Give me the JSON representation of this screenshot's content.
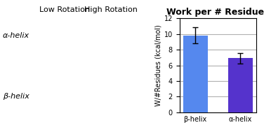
{
  "chart_data": {
    "type": "bar",
    "title": "Work per # Residues",
    "ylabel": "W/#Residues (kcal/mol)",
    "categories": [
      "β-helix",
      "α-helix"
    ],
    "values": [
      9.85,
      6.9
    ],
    "errors": [
      1.05,
      0.65
    ],
    "colors": [
      "#5588EE",
      "#5533CC"
    ],
    "ylim": [
      0,
      12
    ],
    "yticks": [
      0,
      2,
      4,
      6,
      8,
      10,
      12
    ],
    "grid": true,
    "annotations": {
      "columns": [
        "Low Rotation",
        "High Rotation"
      ],
      "rows": [
        "α-helix",
        "β-helix"
      ]
    }
  }
}
